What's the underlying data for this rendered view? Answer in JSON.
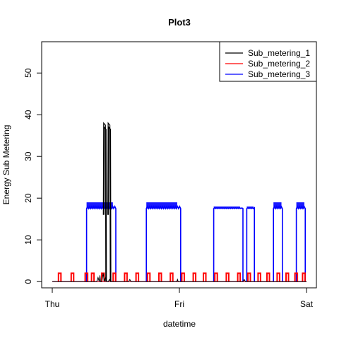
{
  "chart_data": {
    "type": "line",
    "title": "Plot3",
    "xlabel": "datetime",
    "ylabel": "Energy Sub Metering",
    "xlim": [
      0,
      2
    ],
    "ylim": [
      -1.5,
      57.5
    ],
    "x_ticks": [
      {
        "value": 0,
        "label": "Thu"
      },
      {
        "value": 1,
        "label": "Fri"
      },
      {
        "value": 2,
        "label": "Sat"
      }
    ],
    "y_ticks": [
      0,
      10,
      20,
      30,
      40,
      50
    ],
    "grid": false,
    "legend_position": "top-right",
    "series": [
      {
        "name": "Sub_metering_1",
        "color": "#000000",
        "points": [
          [
            0,
            0
          ],
          [
            0.35,
            0
          ],
          [
            0.36,
            1
          ],
          [
            0.37,
            0
          ],
          [
            0.375,
            1.5
          ],
          [
            0.38,
            0
          ],
          [
            0.39,
            0
          ],
          [
            0.4,
            2
          ],
          [
            0.41,
            0
          ],
          [
            0.42,
            1
          ],
          [
            0.43,
            0
          ],
          [
            0.44,
            0
          ],
          [
            0.45,
            0.5
          ],
          [
            0.46,
            0
          ],
          [
            0.6,
            0
          ],
          [
            0.61,
            0.5
          ],
          [
            0.62,
            0
          ],
          [
            0.98,
            0
          ],
          [
            0.985,
            0.5
          ],
          [
            0.99,
            0
          ],
          [
            1.5,
            0
          ],
          [
            1.51,
            0.5
          ],
          [
            1.52,
            0
          ],
          [
            2.0,
            0
          ]
        ],
        "spikes": [
          {
            "x": 0.41,
            "y": 38
          },
          {
            "x": 0.415,
            "y": 37
          },
          {
            "x": 0.445,
            "y": 38
          },
          {
            "x": 0.45,
            "y": 37
          }
        ]
      },
      {
        "name": "Sub_metering_2",
        "color": "#ff0000",
        "pulses": [
          0.06,
          0.16,
          0.27,
          0.32,
          0.4,
          0.49,
          0.58,
          0.67,
          0.76,
          0.85,
          0.94,
          1.03,
          1.12,
          1.2,
          1.29,
          1.38,
          1.47,
          1.55,
          1.63,
          1.7,
          1.78,
          1.85,
          1.92,
          1.98
        ],
        "pulse_height": 2
      },
      {
        "name": "Sub_metering_3",
        "color": "#0000ff",
        "blocks": [
          {
            "start": 0.27,
            "end": 0.5,
            "level": 17.5,
            "noisy_max": 19
          },
          {
            "start": 0.74,
            "end": 1.01,
            "level": 17.5,
            "noisy_max": 19
          },
          {
            "start": 1.27,
            "end": 1.5,
            "level": 17.5,
            "noisy_max": 18
          },
          {
            "start": 1.53,
            "end": 1.59,
            "level": 17.5,
            "noisy_max": 18
          },
          {
            "start": 1.74,
            "end": 1.81,
            "level": 17.5,
            "noisy_max": 19
          },
          {
            "start": 1.92,
            "end": 1.99,
            "level": 17.5,
            "noisy_max": 19
          }
        ]
      }
    ]
  }
}
